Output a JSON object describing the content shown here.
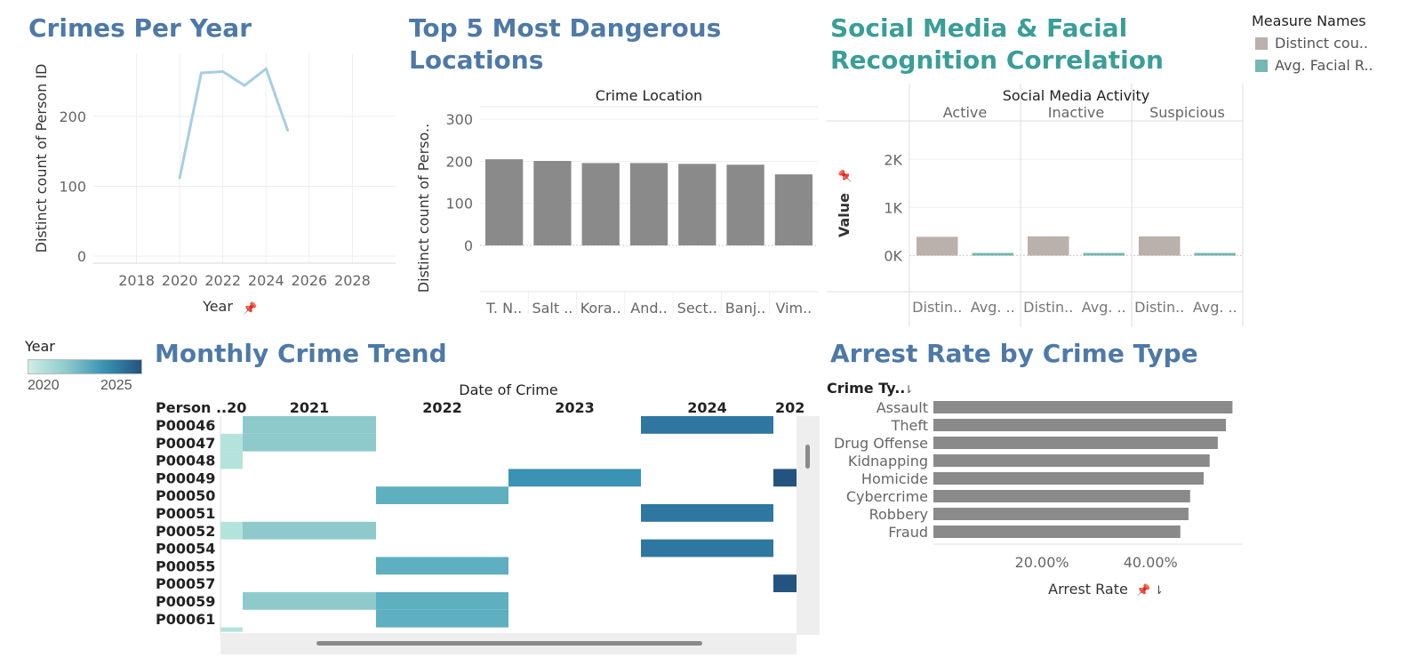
{
  "charts": {
    "crimes_per_year": {
      "title": "Crimes Per Year",
      "chart_data": {
        "type": "line",
        "x": [
          2020,
          2021,
          2022,
          2023,
          2024,
          2025
        ],
        "values": [
          112,
          262,
          264,
          244,
          268,
          180
        ],
        "xlabel": "Year",
        "ylabel": "Distinct count of Person ID",
        "x_ticks": [
          "2018",
          "2020",
          "2022",
          "2024",
          "2026",
          "2028"
        ],
        "y_ticks": [
          "0",
          "100",
          "200"
        ],
        "xlim": [
          2016,
          2030
        ],
        "ylim": [
          -10,
          290
        ],
        "line_color": "#a6cee3"
      }
    },
    "top5_locations": {
      "title_line1": "Top 5 Most Dangerous",
      "title_line2": "Locations",
      "chart_data": {
        "type": "bar",
        "column_header": "Crime Location",
        "categories": [
          "T. N..",
          "Salt ..",
          "Kora..",
          "And..",
          "Sect..",
          "Banj..",
          "Vim.."
        ],
        "values": [
          205,
          201,
          196,
          196,
          194,
          192,
          169
        ],
        "ylabel": "Distinct count of Perso..",
        "y_ticks": [
          "0",
          "100",
          "200",
          "300"
        ],
        "ylim": [
          -110,
          330
        ],
        "bar_color": "#8a8a8a"
      }
    },
    "social_media": {
      "title_line1": "Social Media & Facial",
      "title_line2": "Recognition Correlation",
      "chart_data": {
        "type": "bar",
        "column_header": "Social Media Activity",
        "panels": [
          "Active",
          "Inactive",
          "Suspicious"
        ],
        "measure_labels": [
          "Distin..",
          "Avg. .."
        ],
        "series": [
          {
            "name": "Distinct cou..",
            "values": [
              390,
              400,
              400
            ],
            "color": "#bab0ac"
          },
          {
            "name": "Avg. Facial R..",
            "values": [
              55,
              55,
              55
            ],
            "color": "#76b7b2"
          }
        ],
        "ylabel": "Value",
        "y_ticks": [
          "0K",
          "1K",
          "2K"
        ],
        "ylim": [
          -750,
          2800
        ]
      },
      "legend": {
        "title": "Measure Names",
        "items": [
          {
            "label": "Distinct cou..",
            "color": "#bab0ac"
          },
          {
            "label": "Avg. Facial R..",
            "color": "#76b7b2"
          }
        ]
      }
    },
    "monthly_trend": {
      "title": "Monthly Crime Trend",
      "year_legend": {
        "title": "Year",
        "min": "2020",
        "max": "2025"
      },
      "chart_data": {
        "type": "heatmap",
        "column_header": "Date of Crime",
        "row_header": "Person ..",
        "years": [
          "2020",
          "2021",
          "2022",
          "2023",
          "2024",
          "2025"
        ],
        "year_header_labels": [
          ".20",
          "2021",
          "2022",
          "2023",
          "2024",
          "202"
        ],
        "rows": [
          "P00046",
          "P00047",
          "P00048",
          "P00049",
          "P00050",
          "P00051",
          "P00052",
          "P00054",
          "P00055",
          "P00057",
          "P00059",
          "P00061"
        ],
        "cells": [
          {
            "row": "P00046",
            "years": [
              "2021",
              "2024"
            ]
          },
          {
            "row": "P00047",
            "years": [
              "2020",
              "2021"
            ]
          },
          {
            "row": "P00048",
            "years": [
              "2020"
            ]
          },
          {
            "row": "P00049",
            "years": [
              "2023",
              "2025"
            ]
          },
          {
            "row": "P00050",
            "years": [
              "2022"
            ]
          },
          {
            "row": "P00051",
            "years": [
              "2024"
            ]
          },
          {
            "row": "P00052",
            "years": [
              "2020",
              "2021"
            ]
          },
          {
            "row": "P00054",
            "years": [
              "2024"
            ]
          },
          {
            "row": "P00055",
            "years": [
              "2022"
            ]
          },
          {
            "row": "P00057",
            "years": [
              "2025"
            ]
          },
          {
            "row": "P00059",
            "years": [
              "2021",
              "2022"
            ]
          },
          {
            "row": "P00061",
            "years": [
              "2022"
            ]
          }
        ],
        "colors": {
          "2020": "#b4e3db",
          "2021": "#8ecacc",
          "2022": "#5eb0c0",
          "2023": "#3a93b4",
          "2024": "#2e77a0",
          "2025": "#24537f"
        }
      }
    },
    "arrest_rate": {
      "title": "Arrest Rate by Crime Type",
      "chart_data": {
        "type": "bar",
        "orientation": "horizontal",
        "row_header": "Crime Ty..",
        "categories": [
          "Assault",
          "Theft",
          "Drug Offense",
          "Kidnapping",
          "Homicide",
          "Cybercrime",
          "Robbery",
          "Fraud"
        ],
        "values": [
          55.1,
          53.9,
          52.4,
          50.9,
          49.8,
          47.3,
          47.0,
          45.5
        ],
        "xlabel": "Arrest Rate",
        "x_ticks": [
          "20.00%",
          "40.00%"
        ],
        "xlim": [
          0,
          57
        ],
        "bar_color": "#8a8a8a"
      }
    }
  }
}
